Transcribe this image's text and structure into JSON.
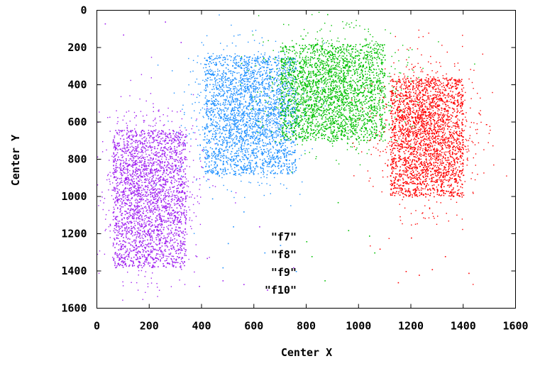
{
  "chart_data": {
    "type": "scatter",
    "title": "",
    "xlabel": "Center X",
    "ylabel": "Center Y",
    "xlim": [
      0,
      1600
    ],
    "ylim": [
      0,
      1600
    ],
    "y_inverted": true,
    "grid": false,
    "legend_position": "bottom-center",
    "x_ticks": [
      "0",
      "200",
      "400",
      "600",
      "800",
      "1000",
      "1200",
      "1400",
      "1600"
    ],
    "y_ticks": [
      "0",
      "200",
      "400",
      "600",
      "800",
      "1000",
      "1200",
      "1400",
      "1600"
    ],
    "series": [
      {
        "name": "\"f7\"",
        "color": "#a020f0",
        "cluster": {
          "center": [
            200,
            960
          ],
          "spread": [
            80,
            200
          ],
          "core_x": [
            60,
            340
          ],
          "core_y": [
            640,
            1380
          ]
        },
        "outliers": [
          [
            30,
            70
          ],
          [
            100,
            130
          ],
          [
            260,
            60
          ],
          [
            320,
            170
          ],
          [
            380,
            1320
          ],
          [
            390,
            1480
          ],
          [
            420,
            1330
          ],
          [
            480,
            1450
          ],
          [
            560,
            1470
          ],
          [
            620,
            1160
          ],
          [
            750,
            1380
          ],
          [
            650,
            1500
          ]
        ]
      },
      {
        "name": "\"f8\"",
        "color": "#1e90ff",
        "cluster": {
          "center": [
            575,
            560
          ],
          "spread": [
            90,
            170
          ],
          "core_x": [
            410,
            760
          ],
          "core_y": [
            240,
            880
          ]
        },
        "outliers": [
          [
            440,
            1010
          ],
          [
            560,
            1080
          ],
          [
            500,
            1250
          ],
          [
            640,
            1300
          ],
          [
            700,
            1260
          ],
          [
            760,
            1400
          ],
          [
            520,
            1160
          ],
          [
            480,
            1380
          ]
        ]
      },
      {
        "name": "\"f9\"",
        "color": "#00c000",
        "cluster": {
          "center": [
            900,
            420
          ],
          "spread": [
            110,
            140
          ],
          "core_x": [
            700,
            1100
          ],
          "core_y": [
            180,
            700
          ]
        },
        "outliers": [
          [
            880,
            20
          ],
          [
            870,
            1450
          ],
          [
            820,
            1320
          ],
          [
            960,
            1180
          ],
          [
            1040,
            1210
          ],
          [
            920,
            1030
          ],
          [
            1060,
            1300
          ],
          [
            800,
            1240
          ]
        ]
      },
      {
        "name": "\"f10\"",
        "color": "#ff0000",
        "cluster": {
          "center": [
            1260,
            660
          ],
          "spread": [
            80,
            180
          ],
          "core_x": [
            1120,
            1400
          ],
          "core_y": [
            360,
            1000
          ]
        },
        "outliers": [
          [
            1180,
            1400
          ],
          [
            1230,
            1420
          ],
          [
            1280,
            1390
          ],
          [
            1420,
            1410
          ],
          [
            1150,
            1460
          ],
          [
            1080,
            1280
          ],
          [
            1330,
            1320
          ],
          [
            1200,
            1220
          ]
        ]
      }
    ]
  }
}
